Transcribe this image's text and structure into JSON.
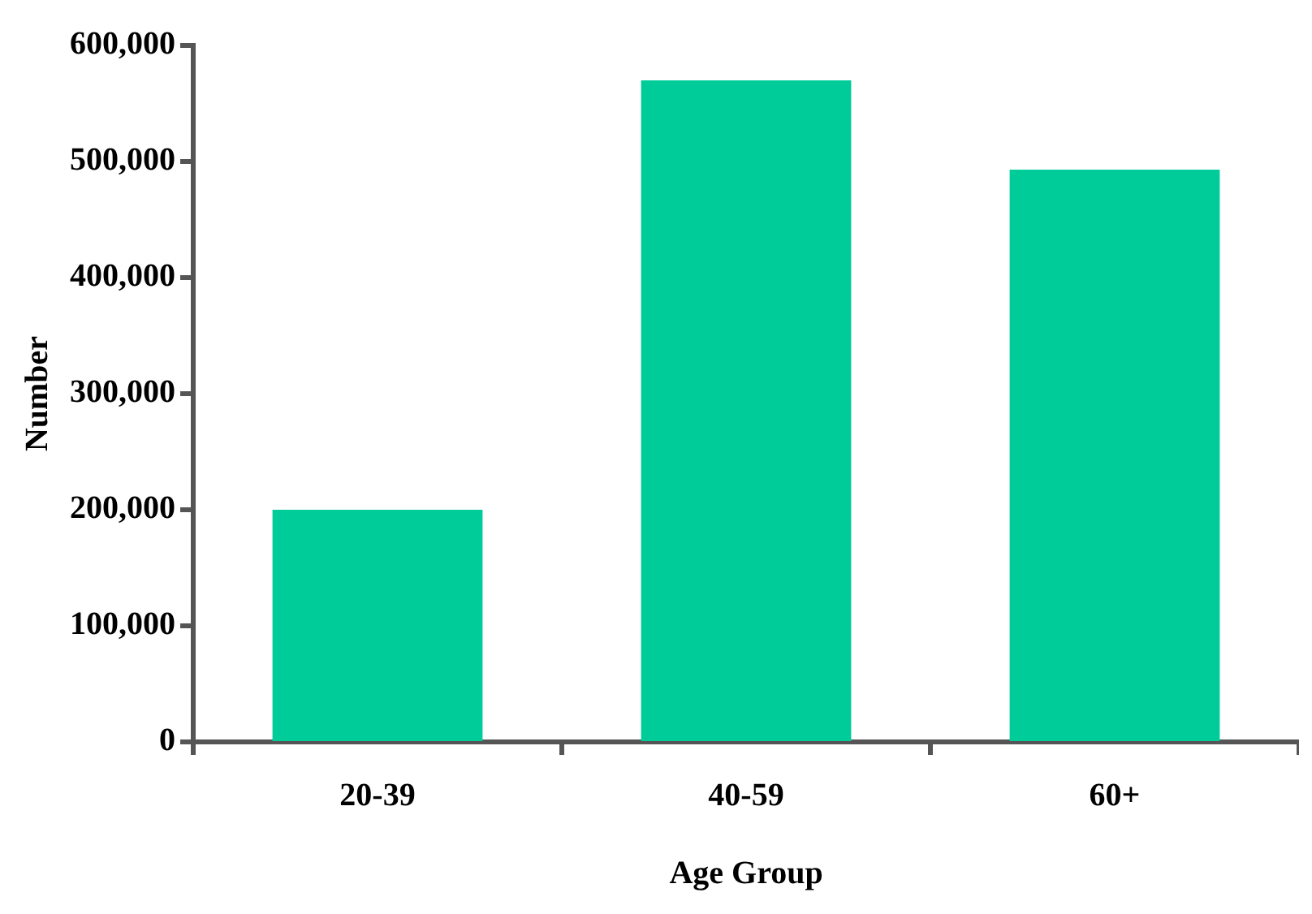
{
  "chart_data": {
    "type": "bar",
    "xlabel": "Age Group",
    "ylabel": "Number",
    "categories": [
      "20-39",
      "40-59",
      "60+"
    ],
    "values": [
      200000,
      570000,
      493000
    ],
    "color": "#00cc99",
    "ylim": [
      0,
      600000
    ],
    "yticks": [
      0,
      {
        "value": 100000,
        "label": "100,000"
      },
      {
        "value": 200000,
        "label": "200,000"
      },
      {
        "value": 300000,
        "label": "300,000"
      },
      {
        "value": 400000,
        "label": "400,000"
      },
      {
        "value": 500000,
        "label": "500,000"
      },
      {
        "value": 600000,
        "label": "600,000"
      }
    ],
    "grid": false
  }
}
